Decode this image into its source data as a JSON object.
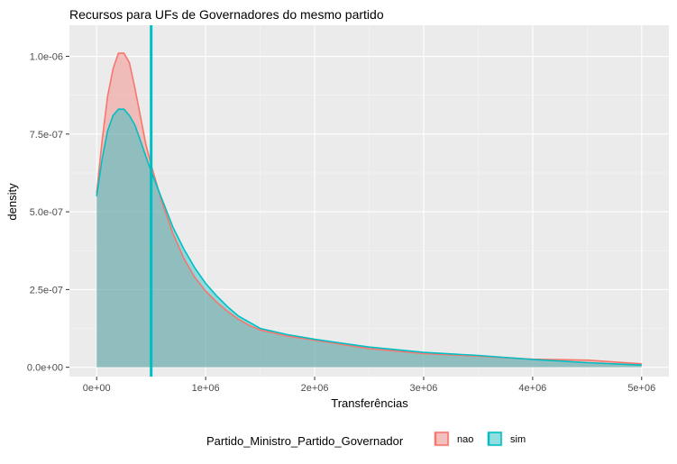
{
  "chart_data": {
    "type": "area",
    "title": "Recursos para UFs de Governadores do mesmo partido",
    "xlabel": "Transferências",
    "ylabel": "density",
    "xlim": [
      -250000,
      5250000
    ],
    "ylim": [
      -3e-08,
      1.1e-06
    ],
    "x_ticks": [
      0,
      1000000,
      2000000,
      3000000,
      4000000,
      5000000
    ],
    "x_tick_labels": [
      "0e+00",
      "1e+06",
      "2e+06",
      "3e+06",
      "4e+06",
      "5e+06"
    ],
    "y_ticks": [
      0,
      2.5e-07,
      5e-07,
      7.5e-07,
      1e-06
    ],
    "y_tick_labels": [
      "0.0e+00",
      "2.5e-07",
      "5.0e-07",
      "7.5e-07",
      "1.0e-06"
    ],
    "grid": true,
    "legend_position": "bottom",
    "legend_title": "Partido_Ministro_Partido_Governador",
    "vline": {
      "x": 500000,
      "color": "#00BFC4"
    },
    "series": [
      {
        "name": "nao",
        "color": "#F8766D",
        "x": [
          0,
          50000,
          100000,
          150000,
          200000,
          250000,
          300000,
          350000,
          400000,
          450000,
          500000,
          600000,
          700000,
          800000,
          900000,
          1000000,
          1100000,
          1200000,
          1300000,
          1400000,
          1500000,
          1750000,
          2000000,
          2500000,
          3000000,
          3500000,
          4000000,
          4500000,
          5000000
        ],
        "y": [
          5.6e-07,
          7.3e-07,
          8.7e-07,
          9.6e-07,
          1.01e-06,
          1.01e-06,
          9.8e-07,
          9e-07,
          8.1e-07,
          7.2e-07,
          6.5e-07,
          5.3e-07,
          4.3e-07,
          3.5e-07,
          2.9e-07,
          2.45e-07,
          2.1e-07,
          1.8e-07,
          1.55e-07,
          1.35e-07,
          1.2e-07,
          1e-07,
          8.7e-08,
          6e-08,
          4.4e-08,
          3.6e-08,
          2.6e-08,
          2.3e-08,
          1.1e-08
        ]
      },
      {
        "name": "sim",
        "color": "#00BFC4",
        "x": [
          0,
          50000,
          100000,
          150000,
          200000,
          250000,
          300000,
          350000,
          400000,
          450000,
          500000,
          600000,
          700000,
          800000,
          900000,
          1000000,
          1100000,
          1200000,
          1300000,
          1400000,
          1500000,
          1750000,
          2000000,
          2500000,
          3000000,
          3500000,
          4000000,
          4500000,
          5000000
        ],
        "y": [
          5.5e-07,
          6.7e-07,
          7.6e-07,
          8.1e-07,
          8.3e-07,
          8.3e-07,
          8.1e-07,
          7.8e-07,
          7.3e-07,
          6.8e-07,
          6.3e-07,
          5.4e-07,
          4.5e-07,
          3.8e-07,
          3.2e-07,
          2.7e-07,
          2.3e-07,
          1.95e-07,
          1.65e-07,
          1.45e-07,
          1.25e-07,
          1.05e-07,
          9e-08,
          6.5e-08,
          4.8e-08,
          3.8e-08,
          2.5e-08,
          1.5e-08,
          7e-09
        ]
      }
    ]
  }
}
